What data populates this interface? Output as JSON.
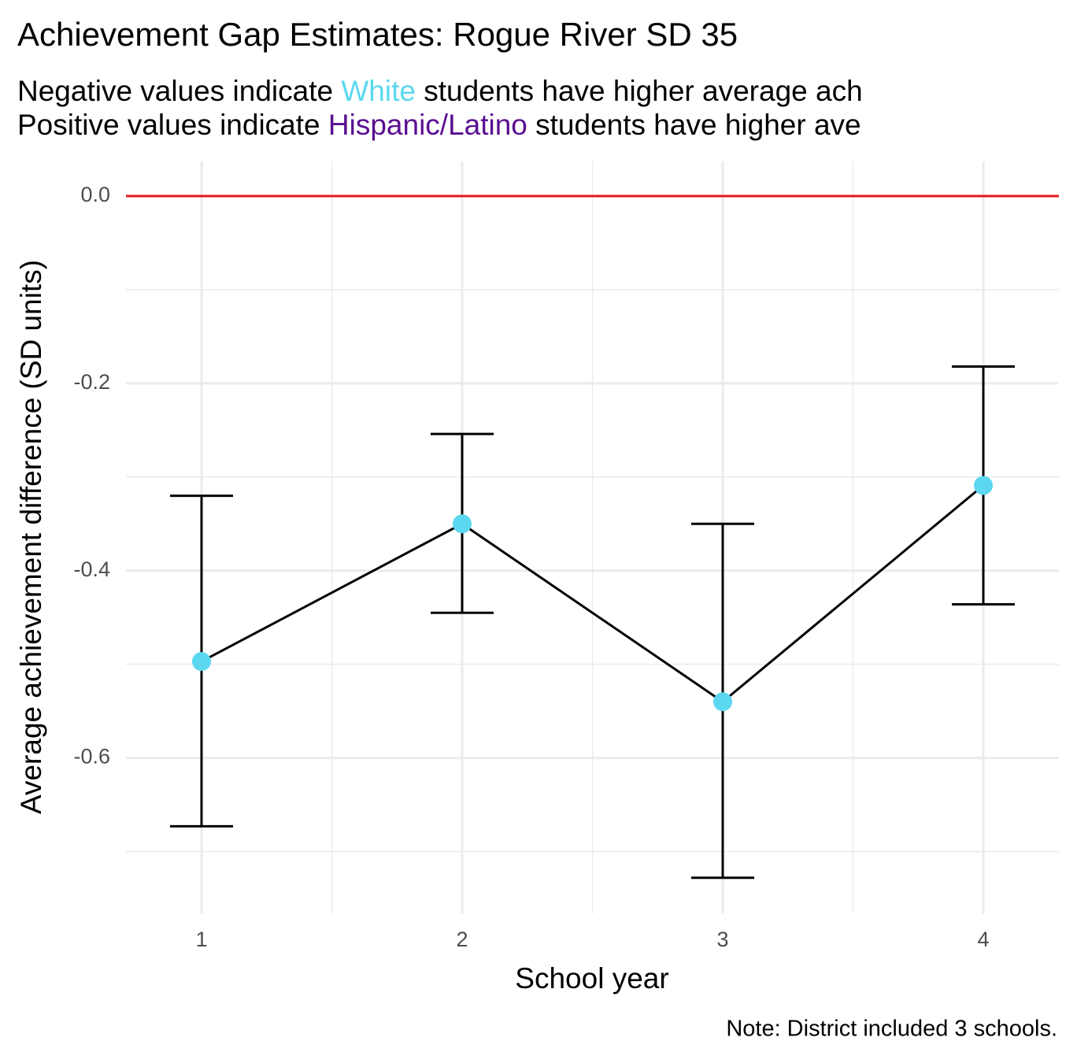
{
  "chart_data": {
    "type": "errorbar_line",
    "title": "Achievement Gap Estimates: Rogue River SD 35",
    "subtitle": [
      {
        "before": "Negative values indicate ",
        "highlight": "White",
        "highlight_color": "#5bd8f0",
        "after": " students have higher average ach"
      },
      {
        "before": "Positive values indicate ",
        "highlight": "Hispanic/Latino",
        "highlight_color": "#5a0f91",
        "after": " students have higher ave"
      }
    ],
    "x_label": "School year",
    "y_label": "Average achievement difference (SD units)",
    "caption": "Note: District included 3 schools.",
    "x": [
      1,
      2,
      3,
      4
    ],
    "values": [
      -0.497,
      -0.35,
      -0.54,
      -0.309
    ],
    "lower": [
      -0.673,
      -0.445,
      -0.728,
      -0.436
    ],
    "upper": [
      -0.32,
      -0.254,
      -0.35,
      -0.182
    ],
    "point_color": "#5bd8f0",
    "line_color": "#000000",
    "reference_line": {
      "value": 0,
      "color": "#e41a1c"
    },
    "xlim": [
      0.71,
      4.29
    ],
    "ylim": [
      -0.766,
      0.037
    ],
    "xticks": [
      1,
      2,
      3,
      4
    ],
    "yticks": [
      -0.6,
      -0.4,
      -0.2,
      {
        "value": 0,
        "label": "0.0"
      }
    ],
    "minor_xticks": [
      1.5,
      2.5,
      3.5
    ],
    "minor_yticks": [
      -0.7,
      -0.5,
      -0.3,
      -0.1
    ],
    "grid": true
  }
}
